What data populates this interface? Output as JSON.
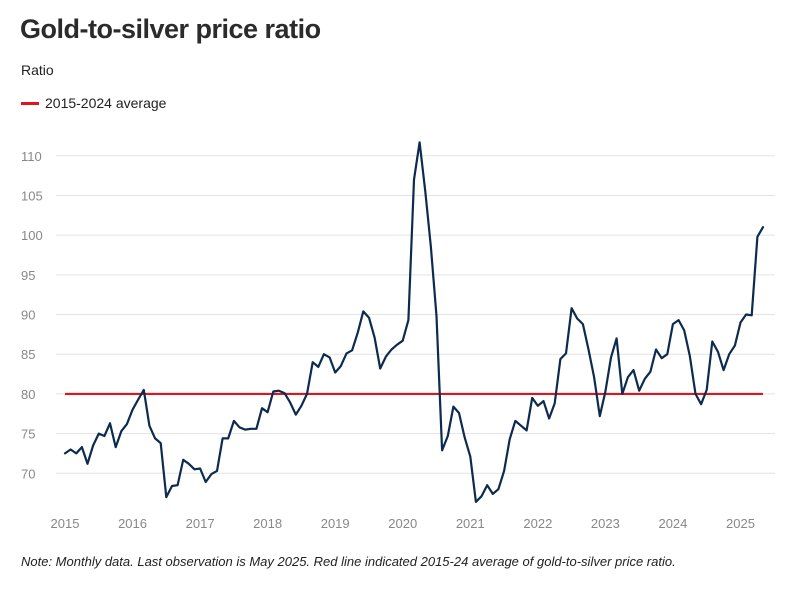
{
  "chart_data": {
    "type": "line",
    "title": "Gold-to-silver price ratio",
    "ylabel": "Ratio",
    "ylim": [
      65.5,
      113
    ],
    "xlim": [
      "2015-01",
      "2025-05"
    ],
    "yticks": [
      70,
      75,
      80,
      85,
      90,
      95,
      100,
      105,
      110
    ],
    "xticks": [
      "2015",
      "2016",
      "2017",
      "2018",
      "2019",
      "2020",
      "2021",
      "2022",
      "2023",
      "2024",
      "2025"
    ],
    "grid": "horizontal",
    "legend_position": "top-left",
    "series": [
      {
        "name": "",
        "color": "#0d2a4f",
        "start": "2015-01",
        "frequency": "monthly",
        "values": [
          72.5,
          73.0,
          72.5,
          73.3,
          71.2,
          73.5,
          75.0,
          74.7,
          76.3,
          73.3,
          75.3,
          76.2,
          78.0,
          79.3,
          80.5,
          76.0,
          74.4,
          73.8,
          67.0,
          68.4,
          68.5,
          71.7,
          71.2,
          70.5,
          70.6,
          68.9,
          69.9,
          70.3,
          74.4,
          74.4,
          76.6,
          75.8,
          75.5,
          75.6,
          75.6,
          78.2,
          77.7,
          80.3,
          80.4,
          80.1,
          78.9,
          77.4,
          78.5,
          80.0,
          84.0,
          83.4,
          85.0,
          84.6,
          82.7,
          83.5,
          85.1,
          85.5,
          87.7,
          90.4,
          89.6,
          87.1,
          83.2,
          84.7,
          85.6,
          86.2,
          86.7,
          89.3,
          107.0,
          111.7,
          105.5,
          98.5,
          89.8,
          72.9,
          74.7,
          78.4,
          77.6,
          74.5,
          72.1,
          66.4,
          67.1,
          68.5,
          67.4,
          68.0,
          70.3,
          74.3,
          76.6,
          76.0,
          75.4,
          79.5,
          78.5,
          79.1,
          76.9,
          78.8,
          84.4,
          85.1,
          90.8,
          89.5,
          88.8,
          85.6,
          82.1,
          77.2,
          80.3,
          84.6,
          87.0,
          80.0,
          82.1,
          83.0,
          80.4,
          81.9,
          82.8,
          85.6,
          84.5,
          85.0,
          88.8,
          89.3,
          88.0,
          84.8,
          80.0,
          78.7,
          80.5,
          86.6,
          85.3,
          83.0,
          85.0,
          86.1,
          89.0,
          90.0,
          89.9,
          99.8,
          101.0
        ]
      },
      {
        "name": "2015-2024 average",
        "color": "#e3121f",
        "value": 80
      }
    ],
    "note": "Note: Monthly data. Last observation is May 2025. Red line indicated 2015-24 average of gold-to-silver price ratio."
  }
}
